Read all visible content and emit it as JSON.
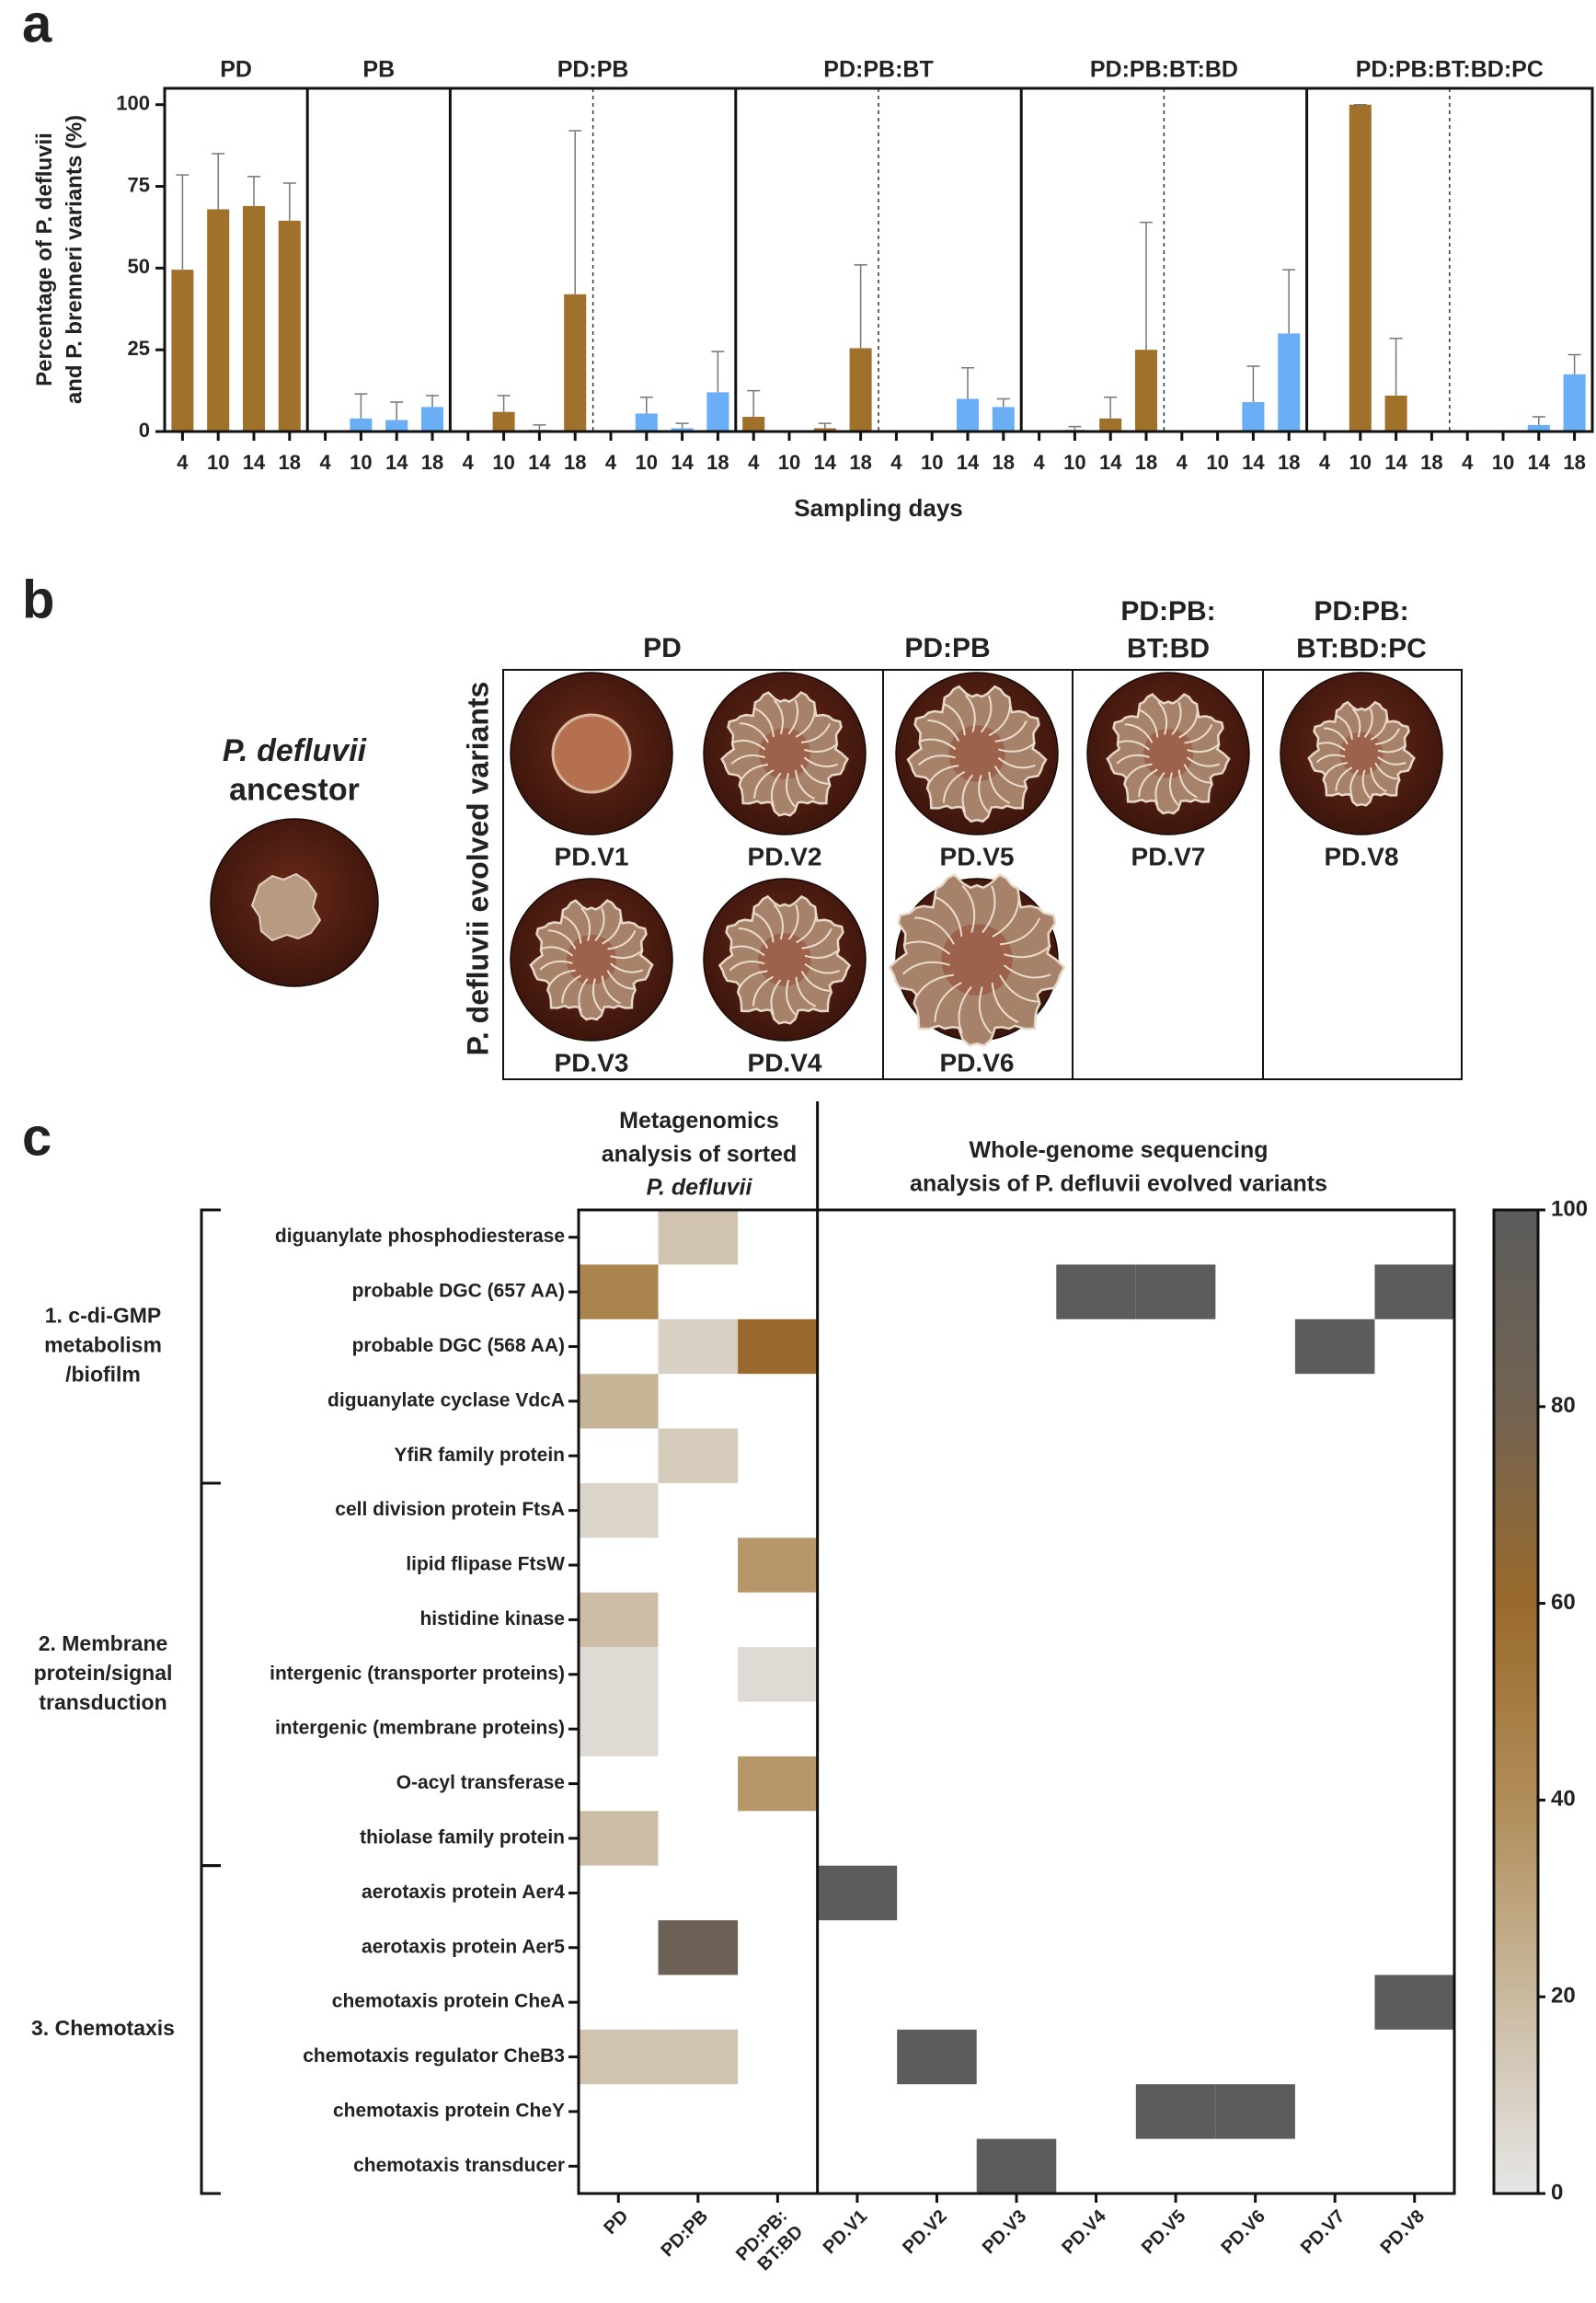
{
  "panel_labels": [
    "a",
    "b",
    "c"
  ],
  "chart_data": [
    {
      "type": "bar",
      "y_label": [
        "Percentage of P. defluvii",
        "and P. brenneri variants (%)"
      ],
      "x_label": "Sampling days",
      "ylim": [
        0,
        105
      ],
      "yticks": [
        0,
        25,
        50,
        75,
        100
      ],
      "categories": [
        "4",
        "10",
        "14",
        "18"
      ],
      "groups": [
        {
          "title": "PD",
          "series": [
            {
              "color": "#a0712b",
              "values": [
                49.5,
                68,
                69,
                64.5
              ],
              "errors": [
                29,
                17,
                9,
                11.5
              ]
            }
          ]
        },
        {
          "title": "PB",
          "series": [
            {
              "color": "#6aaef5",
              "values": [
                0,
                4,
                3.5,
                7.5
              ],
              "errors": [
                0,
                7.5,
                5.5,
                3.5
              ]
            }
          ]
        },
        {
          "title": "PD:PB",
          "series": [
            {
              "color": "#a0712b",
              "values": [
                0,
                6,
                0.5,
                42
              ],
              "errors": [
                0,
                5,
                1.5,
                50
              ]
            },
            {
              "color": "#6aaef5",
              "values": [
                0,
                5.5,
                1,
                12
              ],
              "errors": [
                0,
                5,
                1.5,
                12.5
              ]
            }
          ]
        },
        {
          "title": "PD:PB:BT",
          "series": [
            {
              "color": "#a0712b",
              "values": [
                4.5,
                0,
                1,
                25.5
              ],
              "errors": [
                8,
                0,
                1.5,
                25.5
              ]
            },
            {
              "color": "#6aaef5",
              "values": [
                0,
                0,
                10,
                7.5
              ],
              "errors": [
                0,
                0,
                9.5,
                2.5
              ]
            }
          ]
        },
        {
          "title": "PD:PB:BT:BD",
          "series": [
            {
              "color": "#a0712b",
              "values": [
                0,
                0.5,
                4,
                25
              ],
              "errors": [
                0,
                1,
                6.5,
                39
              ]
            },
            {
              "color": "#6aaef5",
              "values": [
                0,
                0,
                9,
                30
              ],
              "errors": [
                0,
                0,
                11,
                19.5
              ]
            }
          ]
        },
        {
          "title": "PD:PB:BT:BD:PC",
          "series": [
            {
              "color": "#a0712b",
              "values": [
                0,
                100,
                11,
                0
              ],
              "errors": [
                0,
                0,
                17.5,
                0
              ]
            },
            {
              "color": "#6aaef5",
              "values": [
                0,
                0,
                2,
                17.5
              ],
              "errors": [
                0,
                0,
                2.5,
                6
              ]
            }
          ]
        }
      ]
    },
    {
      "type": "heatmap",
      "sections": [
        "Metagenomics\nanalysis of sorted\nP. defluvii",
        "Whole-genome sequencing\nanalysis of P. defluvii evolved variants"
      ],
      "columns": [
        "PD",
        "PD:PB",
        "PD:PB:\nBT:BD",
        "PD.V1",
        "PD.V2",
        "PD.V3",
        "PD.V4",
        "PD.V5",
        "PD.V6",
        "PD.V7",
        "PD.V8"
      ],
      "zlim": [
        0,
        100
      ],
      "zticks": [
        0,
        20,
        40,
        60,
        80,
        100
      ],
      "colorscale": [
        "#e6e6e6",
        "#c9b99f",
        "#b08c58",
        "#9a6a2c",
        "#726352",
        "#5c5c5c"
      ],
      "row_groups": [
        {
          "label": "1. c-di-GMP\nmetabolism\n/biofilm",
          "rows": [
            {
              "name": "diguanylate phosphodiesterase",
              "values": [
                null,
                15,
                null,
                null,
                null,
                null,
                null,
                null,
                null,
                null,
                null
              ]
            },
            {
              "name": "probable DGC (657 AA)",
              "values": [
                45,
                null,
                null,
                null,
                null,
                null,
                100,
                100,
                null,
                null,
                100
              ]
            },
            {
              "name": "probable DGC (568 AA)",
              "values": [
                null,
                10,
                60,
                null,
                null,
                null,
                null,
                null,
                null,
                100,
                null
              ]
            },
            {
              "name": "diguanylate cyclase VdcA",
              "values": [
                22,
                null,
                null,
                null,
                null,
                null,
                null,
                null,
                null,
                null,
                null
              ]
            },
            {
              "name": "YfiR family protein",
              "values": [
                null,
                12,
                null,
                null,
                null,
                null,
                null,
                null,
                null,
                null,
                null
              ]
            }
          ]
        },
        {
          "label": "2. Membrane\nprotein/signal\ntransduction",
          "rows": [
            {
              "name": "cell division protein FtsA",
              "values": [
                8,
                null,
                null,
                null,
                null,
                null,
                null,
                null,
                null,
                null,
                null
              ]
            },
            {
              "name": "lipid flipase FtsW",
              "values": [
                null,
                null,
                35,
                null,
                null,
                null,
                null,
                null,
                null,
                null,
                null
              ]
            },
            {
              "name": "histidine kinase",
              "values": [
                18,
                null,
                null,
                null,
                null,
                null,
                null,
                null,
                null,
                null,
                null
              ]
            },
            {
              "name": "intergenic (transporter proteins)",
              "values": [
                5,
                null,
                5,
                null,
                null,
                null,
                null,
                null,
                null,
                null,
                null
              ]
            },
            {
              "name": "intergenic (membrane proteins)",
              "values": [
                5,
                null,
                null,
                null,
                null,
                null,
                null,
                null,
                null,
                null,
                null
              ]
            },
            {
              "name": "O-acyl transferase",
              "values": [
                null,
                null,
                35,
                null,
                null,
                null,
                null,
                null,
                null,
                null,
                null
              ]
            },
            {
              "name": "thiolase family protein",
              "values": [
                18,
                null,
                null,
                null,
                null,
                null,
                null,
                null,
                null,
                null,
                null
              ]
            }
          ]
        },
        {
          "label": "3.  Chemotaxis",
          "rows": [
            {
              "name": "aerotaxis protein Aer4",
              "values": [
                null,
                null,
                null,
                100,
                null,
                null,
                null,
                null,
                null,
                null,
                null
              ]
            },
            {
              "name": "aerotaxis protein Aer5",
              "values": [
                null,
                85,
                null,
                null,
                null,
                null,
                null,
                null,
                null,
                null,
                null
              ]
            },
            {
              "name": "chemotaxis protein CheA",
              "values": [
                null,
                null,
                null,
                null,
                null,
                null,
                null,
                null,
                null,
                null,
                100
              ]
            },
            {
              "name": "chemotaxis regulator CheB3",
              "values": [
                15,
                15,
                null,
                null,
                100,
                null,
                null,
                null,
                null,
                null,
                null
              ]
            },
            {
              "name": "chemotaxis protein CheY",
              "values": [
                null,
                null,
                null,
                null,
                null,
                null,
                null,
                100,
                100,
                null,
                null
              ]
            },
            {
              "name": "chemotaxis transducer",
              "values": [
                null,
                null,
                null,
                null,
                null,
                100,
                null,
                null,
                null,
                null,
                null
              ]
            }
          ]
        }
      ]
    }
  ],
  "panel_b": {
    "ancestor": "P. defluvii\nancestor",
    "axis_label": "P. defluvii evolved variants",
    "columns": [
      {
        "title": "PD",
        "variants": [
          "PD.V1",
          "PD.V2",
          "PD.V3",
          "PD.V4"
        ]
      },
      {
        "title": "PD:PB",
        "variants": [
          "PD.V5",
          "PD.V6"
        ]
      },
      {
        "title": "PD:PB:\nBT:BD",
        "variants": [
          "PD.V7"
        ]
      },
      {
        "title": "PD:PB:\nBT:BD:PC",
        "variants": [
          "PD.V8"
        ]
      }
    ]
  }
}
